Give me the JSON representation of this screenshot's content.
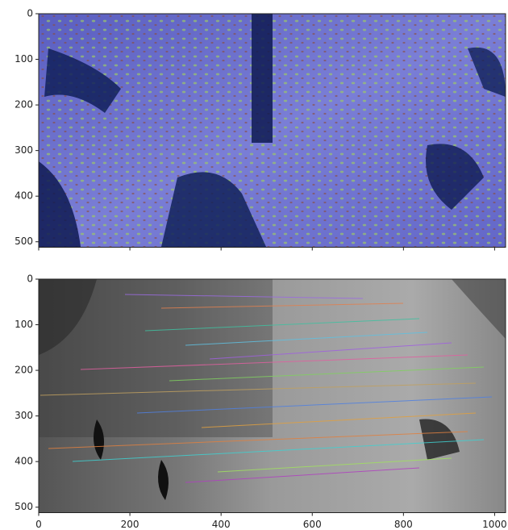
{
  "chart_data": [
    {
      "type": "image",
      "xlim": [
        0,
        1024
      ],
      "ylim": [
        512,
        0
      ],
      "xticks": [
        0,
        200,
        400,
        600,
        800,
        1000
      ],
      "yticks": [
        0,
        100,
        200,
        300,
        400,
        500
      ],
      "show_xtick_labels": false
    },
    {
      "type": "image",
      "xlim": [
        0,
        1024
      ],
      "ylim": [
        512,
        0
      ],
      "xticks": [
        0,
        200,
        400,
        600,
        800,
        1000
      ],
      "yticks": [
        0,
        100,
        200,
        300,
        400,
        500
      ],
      "show_xtick_labels": true
    }
  ]
}
